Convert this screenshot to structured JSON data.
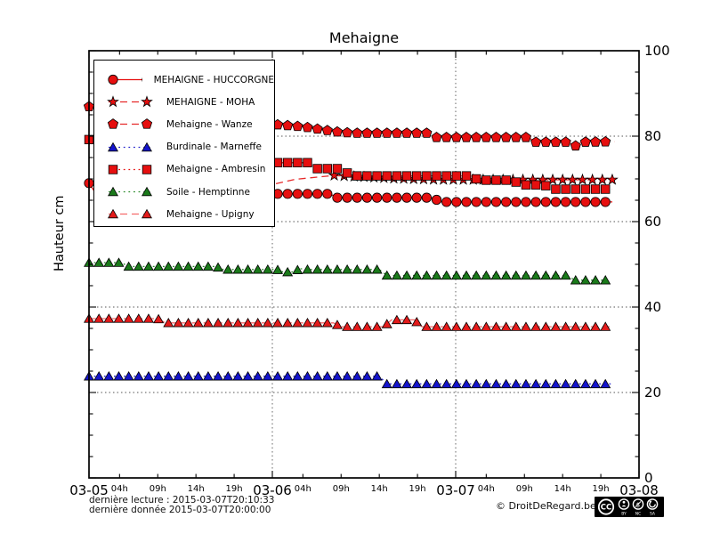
{
  "figure": {
    "title": "Mehaigne",
    "ylabel": "Hauteur cm"
  },
  "footer": {
    "last_read": "dernière lecture : 2015-03-07T20:10:33",
    "last_data": "dernière donnée  2015-03-07T20:00:00",
    "copyright": "© DroitDeRegard.be",
    "license": {
      "badge": "CC",
      "parts": [
        "BY",
        "NC",
        "SA"
      ]
    }
  },
  "chart_data": {
    "type": "line",
    "title": "Mehaigne",
    "xlabel": "",
    "ylabel": "Hauteur cm",
    "ylim": [
      0,
      100
    ],
    "x_unit": "hours since 2015-03-05 00:00",
    "xlim": [
      0,
      72
    ],
    "grid": {
      "horizontal_at": [
        20,
        40,
        60,
        80
      ],
      "vertical_at": [
        24,
        48
      ],
      "style": "dotted"
    },
    "legend_position": "upper left",
    "y_major_ticks": [
      0,
      20,
      40,
      60,
      80,
      100
    ],
    "y_minor_step": 5,
    "x_day_ticks": [
      {
        "t": 0,
        "label": "03-05"
      },
      {
        "t": 24,
        "label": "03-06"
      },
      {
        "t": 48,
        "label": "03-07"
      },
      {
        "t": 72,
        "label": "03-08"
      }
    ],
    "x_hour_ticks": [
      {
        "t": 4,
        "label": "04h"
      },
      {
        "t": 9,
        "label": "09h"
      },
      {
        "t": 14,
        "label": "14h"
      },
      {
        "t": 19,
        "label": "19h"
      },
      {
        "t": 28,
        "label": "04h"
      },
      {
        "t": 33,
        "label": "09h"
      },
      {
        "t": 38,
        "label": "14h"
      },
      {
        "t": 43,
        "label": "19h"
      },
      {
        "t": 52,
        "label": "04h"
      },
      {
        "t": 57,
        "label": "09h"
      },
      {
        "t": 62,
        "label": "14h"
      },
      {
        "t": 67,
        "label": "19h"
      }
    ],
    "series": [
      {
        "name": "MEHAIGNE - HUCCORGNE",
        "marker": "circle",
        "line_style": "solid",
        "color": "#e60f0f",
        "line_color": "#e60f0f",
        "points": [
          [
            0,
            69
          ],
          [
            0.9,
            66.6
          ],
          [
            22.4,
            66.6
          ],
          [
            23.3,
            64.6
          ],
          [
            24.2,
            66.5
          ],
          [
            31.5,
            66.5
          ],
          [
            32.5,
            65.6
          ],
          [
            45,
            65.6
          ],
          [
            46,
            64.6
          ],
          [
            68.5,
            64.6
          ]
        ]
      },
      {
        "name": "MEHAIGNE - MOHA",
        "marker": "star",
        "line_style": "dashed",
        "color": "#e60f0f",
        "line_color": "#e62929",
        "marker_from": 31.5,
        "points": [
          [
            23,
            68.3
          ],
          [
            27,
            69.9
          ],
          [
            32,
            70.8
          ],
          [
            40,
            70.1
          ],
          [
            46,
            69.8
          ],
          [
            68.8,
            69.8
          ]
        ]
      },
      {
        "name": "Mehaigne - Wanze",
        "marker": "pentagon",
        "line_style": "dashed",
        "color": "#e60f0f",
        "line_color": "#e62929",
        "points": [
          [
            0,
            86.9
          ],
          [
            4,
            85.4
          ],
          [
            10,
            84.2
          ],
          [
            16,
            83.4
          ],
          [
            22,
            83
          ],
          [
            24.5,
            82.7
          ],
          [
            28,
            82.2
          ],
          [
            30.5,
            81.5
          ],
          [
            32.5,
            81
          ],
          [
            34.5,
            80.7
          ],
          [
            44.5,
            80.7
          ],
          [
            45.5,
            79.7
          ],
          [
            57.5,
            79.7
          ],
          [
            58.5,
            78.6
          ],
          [
            62.8,
            78.6
          ],
          [
            63.6,
            77.6
          ],
          [
            64.4,
            78.6
          ],
          [
            68.8,
            78.7
          ]
        ]
      },
      {
        "name": "Burdinale - Marneffe",
        "marker": "triangle",
        "line_style": "dotted",
        "color": "#1414cc",
        "line_color": "#2222cc",
        "points": [
          [
            0,
            23.8
          ],
          [
            38,
            23.8
          ],
          [
            39,
            22
          ],
          [
            68.5,
            22
          ]
        ]
      },
      {
        "name": "Mehaigne - Ambresin",
        "marker": "square",
        "line_style": "dotted",
        "color": "#e60f0f",
        "line_color": "#e60f0f",
        "points": [
          [
            0,
            79.2
          ],
          [
            8,
            77.2
          ],
          [
            16,
            75.3
          ],
          [
            22.5,
            74.1
          ],
          [
            24,
            73.8
          ],
          [
            28.7,
            73.8
          ],
          [
            29.6,
            72.4
          ],
          [
            33.2,
            72.4
          ],
          [
            34.2,
            70.7
          ],
          [
            50,
            70.7
          ],
          [
            51,
            69.7
          ],
          [
            55.5,
            69.7
          ],
          [
            56.5,
            68.6
          ],
          [
            59.6,
            68.6
          ],
          [
            60.6,
            67.6
          ],
          [
            68.5,
            67.6
          ]
        ]
      },
      {
        "name": "Soile - Hemptinne",
        "marker": "triangle",
        "line_style": "dotted",
        "color": "#1a7a1a",
        "line_color": "#2a8a2a",
        "points": [
          [
            0,
            50.4
          ],
          [
            4.2,
            50.4
          ],
          [
            5.2,
            49.5
          ],
          [
            16.6,
            49.5
          ],
          [
            17.6,
            48.8
          ],
          [
            24.6,
            48.8
          ],
          [
            25.4,
            48.2
          ],
          [
            26.8,
            48.2
          ],
          [
            27.6,
            49
          ],
          [
            28.6,
            48.8
          ],
          [
            38,
            48.8
          ],
          [
            39,
            47.4
          ],
          [
            62.6,
            47.4
          ],
          [
            63.6,
            46.3
          ],
          [
            67.6,
            46.3
          ]
        ]
      },
      {
        "name": "Mehaigne - Upigny",
        "marker": "triangle",
        "line_style": "dashed",
        "color": "#e31b1b",
        "line_color": "#f56a6a",
        "points": [
          [
            0,
            37.3
          ],
          [
            9,
            37.3
          ],
          [
            10,
            36.3
          ],
          [
            32,
            36.3
          ],
          [
            33,
            35.4
          ],
          [
            38.6,
            35.4
          ],
          [
            39.6,
            37
          ],
          [
            42.6,
            37
          ],
          [
            43.6,
            35.4
          ],
          [
            68.3,
            35.4
          ]
        ]
      }
    ]
  }
}
